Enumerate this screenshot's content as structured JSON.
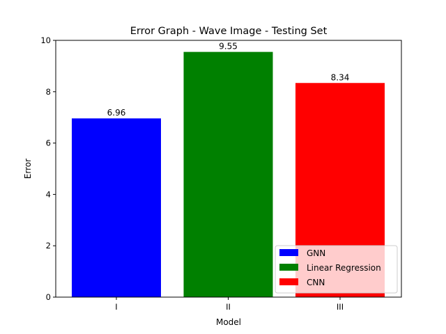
{
  "chart_data": {
    "type": "bar",
    "title": "Error Graph - Wave Image - Testing Set",
    "xlabel": "Model",
    "ylabel": "Error",
    "categories": [
      "I",
      "II",
      "III"
    ],
    "values": [
      6.96,
      9.55,
      8.34
    ],
    "value_labels": [
      "6.96",
      "9.55",
      "8.34"
    ],
    "colors": [
      "#0000ff",
      "#008000",
      "#ff0000"
    ],
    "ylim": [
      0,
      10
    ],
    "yticks": [
      0,
      2,
      4,
      6,
      8,
      10
    ],
    "ytick_labels": [
      "0",
      "2",
      "4",
      "6",
      "8",
      "10"
    ],
    "grid": false,
    "legend": {
      "placement": "lower-right",
      "entries": [
        {
          "label": "GNN",
          "color": "#0000ff"
        },
        {
          "label": "Linear Regression",
          "color": "#008000"
        },
        {
          "label": "CNN",
          "color": "#ff0000"
        }
      ]
    }
  }
}
